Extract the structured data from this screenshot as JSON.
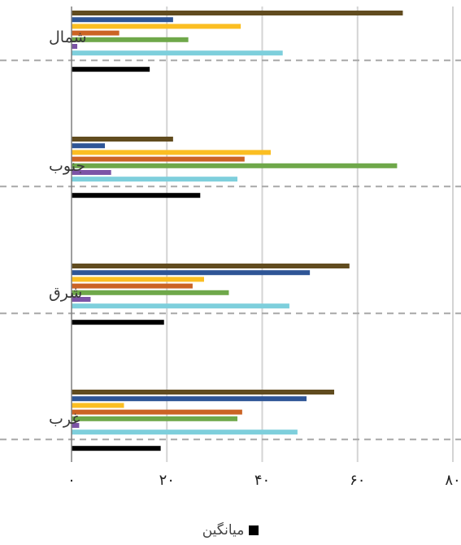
{
  "chart_data": {
    "type": "bar",
    "orientation": "horizontal",
    "categories": [
      "شمال",
      "جنوب",
      "شرق",
      "غرب"
    ],
    "xlim": [
      0,
      80
    ],
    "x_ticks": [
      0,
      20,
      40,
      60,
      80
    ],
    "x_tick_labels": [
      "۰",
      "۲۰",
      "۴۰",
      "۶۰",
      "۸۰"
    ],
    "grid": true,
    "legend_position": "bottom",
    "series": [
      {
        "color": "#614c1f",
        "values": [
          69.5,
          21.3,
          58.3,
          55.1
        ]
      },
      {
        "color": "#2e5596",
        "values": [
          21.3,
          7.0,
          50.0,
          49.3
        ]
      },
      {
        "color": "#fbbe22",
        "values": [
          35.5,
          41.8,
          27.8,
          11.0
        ]
      },
      {
        "color": "#cb6324",
        "values": [
          10.0,
          36.3,
          25.4,
          35.8
        ]
      },
      {
        "color": "#6fa84a",
        "values": [
          24.5,
          68.3,
          33.0,
          34.8
        ]
      },
      {
        "color": "#7c54a6",
        "values": [
          1.2,
          8.3,
          4.0,
          1.6
        ]
      },
      {
        "color": "#7ecfdc",
        "values": [
          44.3,
          34.8,
          45.7,
          47.4
        ]
      },
      {
        "name": "میانگین",
        "color": "#000000",
        "values": [
          16.4,
          27.0,
          19.4,
          18.7
        ]
      }
    ],
    "legend": [
      {
        "label": "میانگین",
        "color": "#000000"
      }
    ]
  }
}
